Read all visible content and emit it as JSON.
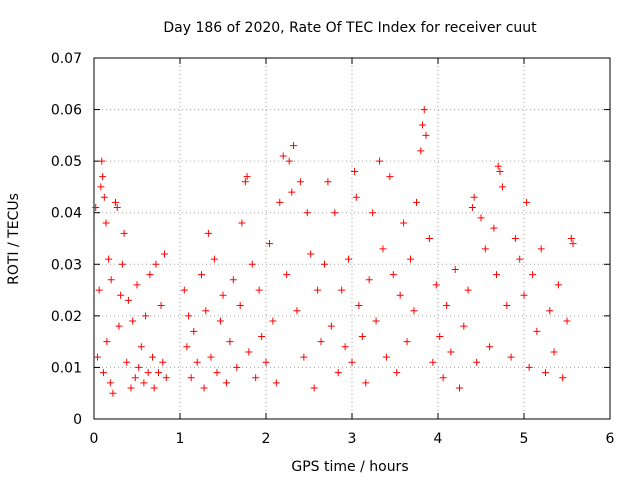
{
  "chart_data": {
    "type": "scatter",
    "title": "Day 186 of 2020, Rate Of TEC Index for receiver cuut",
    "xlabel": "GPS time / hours",
    "ylabel": "ROTI / TECUs",
    "xlim": [
      0,
      6
    ],
    "ylim": [
      0,
      0.07
    ],
    "x_ticks": [
      0,
      1,
      2,
      3,
      4,
      5,
      6
    ],
    "y_ticks": [
      0,
      0.01,
      0.02,
      0.03,
      0.04,
      0.05,
      0.06,
      0.07
    ],
    "x_tick_labels": [
      "0",
      "1",
      "2",
      "3",
      "4",
      "5",
      "6"
    ],
    "y_tick_labels": [
      "0",
      "0.01",
      "0.02",
      "0.03",
      "0.04",
      "0.05",
      "0.06",
      "0.07"
    ],
    "grid": true,
    "marker": "+",
    "color": "#ff0000",
    "series": [
      {
        "points": [
          [
            0.02,
            0.041
          ],
          [
            0.04,
            0.012
          ],
          [
            0.06,
            0.025
          ],
          [
            0.08,
            0.045
          ],
          [
            0.09,
            0.05
          ],
          [
            0.1,
            0.047
          ],
          [
            0.11,
            0.009
          ],
          [
            0.12,
            0.043
          ],
          [
            0.14,
            0.038
          ],
          [
            0.15,
            0.015
          ],
          [
            0.17,
            0.031
          ],
          [
            0.19,
            0.007
          ],
          [
            0.2,
            0.027
          ],
          [
            0.22,
            0.005
          ],
          [
            0.25,
            0.042
          ],
          [
            0.27,
            0.041
          ],
          [
            0.29,
            0.018
          ],
          [
            0.31,
            0.024
          ],
          [
            0.33,
            0.03
          ],
          [
            0.35,
            0.036
          ],
          [
            0.38,
            0.011
          ],
          [
            0.4,
            0.023
          ],
          [
            0.43,
            0.006
          ],
          [
            0.45,
            0.019
          ],
          [
            0.48,
            0.008
          ],
          [
            0.5,
            0.026
          ],
          [
            0.52,
            0.01
          ],
          [
            0.55,
            0.014
          ],
          [
            0.58,
            0.007
          ],
          [
            0.6,
            0.02
          ],
          [
            0.63,
            0.009
          ],
          [
            0.65,
            0.028
          ],
          [
            0.68,
            0.012
          ],
          [
            0.7,
            0.006
          ],
          [
            0.72,
            0.03
          ],
          [
            0.75,
            0.009
          ],
          [
            0.78,
            0.022
          ],
          [
            0.8,
            0.011
          ],
          [
            0.82,
            0.032
          ],
          [
            0.84,
            0.008
          ],
          [
            1.05,
            0.025
          ],
          [
            1.08,
            0.014
          ],
          [
            1.1,
            0.02
          ],
          [
            1.13,
            0.008
          ],
          [
            1.16,
            0.017
          ],
          [
            1.2,
            0.011
          ],
          [
            1.25,
            0.028
          ],
          [
            1.28,
            0.006
          ],
          [
            1.3,
            0.021
          ],
          [
            1.33,
            0.036
          ],
          [
            1.36,
            0.012
          ],
          [
            1.4,
            0.031
          ],
          [
            1.43,
            0.009
          ],
          [
            1.47,
            0.019
          ],
          [
            1.5,
            0.024
          ],
          [
            1.54,
            0.007
          ],
          [
            1.58,
            0.015
          ],
          [
            1.62,
            0.027
          ],
          [
            1.66,
            0.01
          ],
          [
            1.7,
            0.022
          ],
          [
            1.72,
            0.038
          ],
          [
            1.76,
            0.046
          ],
          [
            1.78,
            0.047
          ],
          [
            1.8,
            0.013
          ],
          [
            1.84,
            0.03
          ],
          [
            1.88,
            0.008
          ],
          [
            1.92,
            0.025
          ],
          [
            1.95,
            0.016
          ],
          [
            2.0,
            0.011
          ],
          [
            2.04,
            0.034
          ],
          [
            2.08,
            0.019
          ],
          [
            2.12,
            0.007
          ],
          [
            2.16,
            0.042
          ],
          [
            2.2,
            0.051
          ],
          [
            2.24,
            0.028
          ],
          [
            2.27,
            0.05
          ],
          [
            2.3,
            0.044
          ],
          [
            2.32,
            0.053
          ],
          [
            2.36,
            0.021
          ],
          [
            2.4,
            0.046
          ],
          [
            2.44,
            0.012
          ],
          [
            2.48,
            0.04
          ],
          [
            2.52,
            0.032
          ],
          [
            2.56,
            0.006
          ],
          [
            2.6,
            0.025
          ],
          [
            2.64,
            0.015
          ],
          [
            2.68,
            0.03
          ],
          [
            2.72,
            0.046
          ],
          [
            2.76,
            0.018
          ],
          [
            2.8,
            0.04
          ],
          [
            2.84,
            0.009
          ],
          [
            2.88,
            0.025
          ],
          [
            2.92,
            0.014
          ],
          [
            2.96,
            0.031
          ],
          [
            3.0,
            0.011
          ],
          [
            3.03,
            0.048
          ],
          [
            3.05,
            0.043
          ],
          [
            3.08,
            0.022
          ],
          [
            3.12,
            0.016
          ],
          [
            3.16,
            0.007
          ],
          [
            3.2,
            0.027
          ],
          [
            3.24,
            0.04
          ],
          [
            3.28,
            0.019
          ],
          [
            3.32,
            0.05
          ],
          [
            3.36,
            0.033
          ],
          [
            3.4,
            0.012
          ],
          [
            3.44,
            0.047
          ],
          [
            3.48,
            0.028
          ],
          [
            3.52,
            0.009
          ],
          [
            3.56,
            0.024
          ],
          [
            3.6,
            0.038
          ],
          [
            3.64,
            0.015
          ],
          [
            3.68,
            0.031
          ],
          [
            3.72,
            0.021
          ],
          [
            3.75,
            0.042
          ],
          [
            3.8,
            0.052
          ],
          [
            3.82,
            0.057
          ],
          [
            3.84,
            0.06
          ],
          [
            3.86,
            0.055
          ],
          [
            3.9,
            0.035
          ],
          [
            3.94,
            0.011
          ],
          [
            3.98,
            0.026
          ],
          [
            4.02,
            0.016
          ],
          [
            4.06,
            0.008
          ],
          [
            4.1,
            0.022
          ],
          [
            4.15,
            0.013
          ],
          [
            4.2,
            0.029
          ],
          [
            4.25,
            0.006
          ],
          [
            4.3,
            0.018
          ],
          [
            4.35,
            0.025
          ],
          [
            4.4,
            0.041
          ],
          [
            4.42,
            0.043
          ],
          [
            4.45,
            0.011
          ],
          [
            4.5,
            0.039
          ],
          [
            4.55,
            0.033
          ],
          [
            4.6,
            0.014
          ],
          [
            4.65,
            0.037
          ],
          [
            4.68,
            0.028
          ],
          [
            4.7,
            0.049
          ],
          [
            4.72,
            0.048
          ],
          [
            4.75,
            0.045
          ],
          [
            4.8,
            0.022
          ],
          [
            4.85,
            0.012
          ],
          [
            4.9,
            0.035
          ],
          [
            4.95,
            0.031
          ],
          [
            5.0,
            0.024
          ],
          [
            5.03,
            0.042
          ],
          [
            5.06,
            0.01
          ],
          [
            5.1,
            0.028
          ],
          [
            5.15,
            0.017
          ],
          [
            5.2,
            0.033
          ],
          [
            5.25,
            0.009
          ],
          [
            5.3,
            0.021
          ],
          [
            5.35,
            0.013
          ],
          [
            5.4,
            0.026
          ],
          [
            5.45,
            0.008
          ],
          [
            5.5,
            0.019
          ],
          [
            5.55,
            0.035
          ],
          [
            5.57,
            0.034
          ]
        ]
      }
    ]
  }
}
